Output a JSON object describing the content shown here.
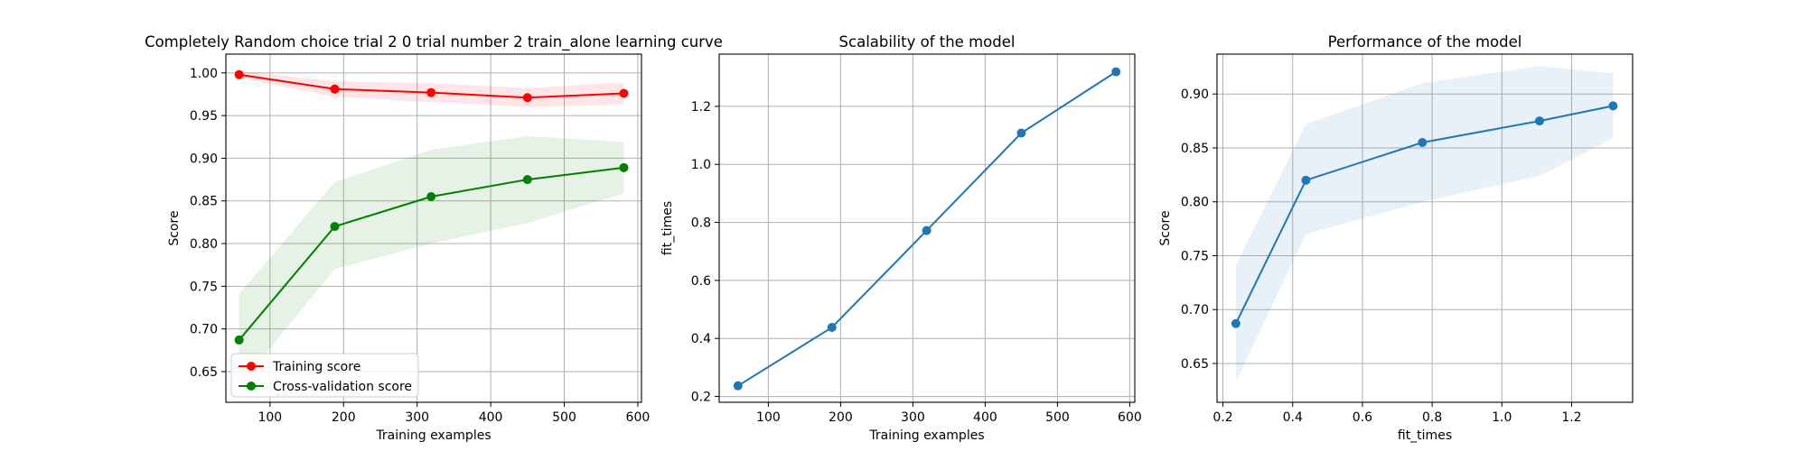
{
  "chart_data": [
    {
      "type": "line",
      "title": "Completely Random choice trial 2 0 trial number 2 train_alone learning curve",
      "xlabel": "Training examples",
      "ylabel": "Score",
      "xlim": [
        40,
        605
      ],
      "ylim": [
        0.614,
        1.022
      ],
      "xticks": [
        100,
        200,
        300,
        400,
        500,
        600
      ],
      "yticks": [
        0.65,
        0.7,
        0.75,
        0.8,
        0.85,
        0.9,
        0.95,
        1.0
      ],
      "grid": true,
      "legend": "lower left",
      "x": [
        58,
        188,
        319,
        450,
        581
      ],
      "series": [
        {
          "name": "Training score",
          "color": "#ff0000",
          "fill": "#ff0000",
          "values": [
            0.998,
            0.981,
            0.977,
            0.971,
            0.976
          ],
          "lower": [
            0.994,
            0.972,
            0.966,
            0.96,
            0.963
          ],
          "upper": [
            1.002,
            0.99,
            0.988,
            0.982,
            0.989
          ]
        },
        {
          "name": "Cross-validation score",
          "color": "#008000",
          "fill": "#008000",
          "values": [
            0.687,
            0.82,
            0.855,
            0.875,
            0.889
          ],
          "lower": [
            0.633,
            0.77,
            0.8,
            0.824,
            0.859
          ],
          "upper": [
            0.741,
            0.872,
            0.91,
            0.926,
            0.919
          ]
        }
      ]
    },
    {
      "type": "line",
      "title": "Scalability of the model",
      "xlabel": "Training examples",
      "ylabel": "fit_times",
      "xlim": [
        32,
        607
      ],
      "ylim": [
        0.18,
        1.38
      ],
      "xticks": [
        100,
        200,
        300,
        400,
        500,
        600
      ],
      "yticks": [
        0.2,
        0.4,
        0.6,
        0.8,
        1.0,
        1.2
      ],
      "grid": true,
      "x": [
        58,
        188,
        319,
        450,
        581
      ],
      "series": [
        {
          "name": "",
          "color": "#1f77b4",
          "fill": "#1f77b4",
          "values": [
            0.237,
            0.438,
            0.772,
            1.108,
            1.319
          ],
          "lower": [
            0.236,
            0.437,
            0.771,
            1.107,
            1.318
          ],
          "upper": [
            0.238,
            0.439,
            0.773,
            1.109,
            1.32
          ]
        }
      ]
    },
    {
      "type": "line",
      "title": "Performance of the model",
      "xlabel": "fit_times",
      "ylabel": "Score",
      "xlim": [
        0.183,
        1.375
      ],
      "ylim": [
        0.614,
        0.937
      ],
      "xticks": [
        0.2,
        0.4,
        0.6,
        0.8,
        1.0,
        1.2
      ],
      "yticks": [
        0.65,
        0.7,
        0.75,
        0.8,
        0.85,
        0.9
      ],
      "grid": true,
      "x": [
        0.237,
        0.438,
        0.772,
        1.108,
        1.319
      ],
      "series": [
        {
          "name": "",
          "color": "#1f77b4",
          "fill": "#1f77b4",
          "values": [
            0.687,
            0.82,
            0.855,
            0.875,
            0.889
          ],
          "lower": [
            0.633,
            0.77,
            0.8,
            0.824,
            0.859
          ],
          "upper": [
            0.741,
            0.872,
            0.91,
            0.926,
            0.919
          ]
        }
      ]
    }
  ]
}
